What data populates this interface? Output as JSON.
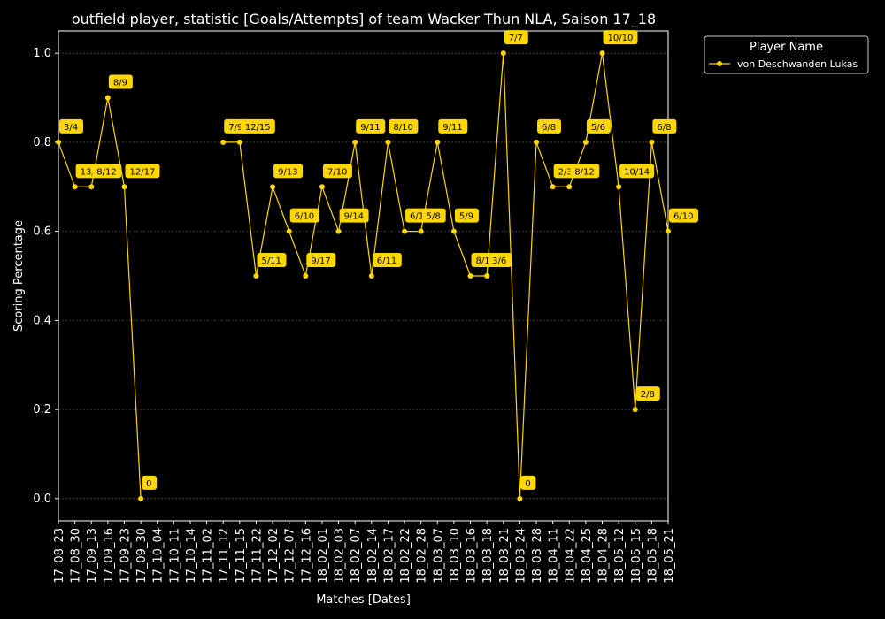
{
  "chart_data": {
    "type": "line",
    "title": "outfield player, statistic [Goals/Attempts] of team Wacker Thun NLA, Saison 17_18",
    "xlabel": "Matches [Dates]",
    "ylabel": "Scoring Percentage",
    "ylim": [
      -0.05,
      1.05
    ],
    "yticks": [
      "0.0",
      "0.2",
      "0.4",
      "0.6",
      "0.8",
      "1.0"
    ],
    "grid": true,
    "legend": {
      "title": "Player Name",
      "position": "outside-top-right"
    },
    "categories": [
      "17_08_23",
      "17_08_30",
      "17_09_13",
      "17_09_16",
      "17_09_23",
      "17_09_30",
      "17_10_04",
      "17_10_11",
      "17_10_14",
      "17_11_02",
      "17_11_12",
      "17_11_15",
      "17_11_22",
      "17_12_02",
      "17_12_07",
      "17_12_16",
      "18_02_01",
      "18_02_03",
      "18_02_07",
      "18_02_14",
      "18_02_17",
      "18_02_22",
      "18_02_28",
      "18_03_07",
      "18_03_10",
      "18_03_16",
      "18_03_18",
      "18_03_21",
      "18_03_24",
      "18_03_28",
      "18_04_11",
      "18_04_22",
      "18_04_25",
      "18_04_28",
      "18_05_12",
      "18_05_15",
      "18_05_18",
      "18_05_21"
    ],
    "series": [
      {
        "name": "von Deschwanden Lukas",
        "color": "#ffd700",
        "values": [
          0.8,
          0.7,
          0.7,
          0.9,
          0.7,
          0.0,
          null,
          null,
          null,
          null,
          0.8,
          0.8,
          0.5,
          0.7,
          0.6,
          0.5,
          0.7,
          0.6,
          0.8,
          0.5,
          0.8,
          0.6,
          0.6,
          0.8,
          0.6,
          0.5,
          0.5,
          1.0,
          0.0,
          0.8,
          0.7,
          0.7,
          0.8,
          1.0,
          0.7,
          0.2,
          0.8,
          0.6
        ],
        "labels": [
          "3/4",
          "13/",
          "8/12",
          "8/9",
          "12/17",
          "0",
          "",
          "",
          "",
          "",
          "7/9",
          "12/15",
          "5/11",
          "9/13",
          "6/10",
          "9/17",
          "7/10",
          "9/14",
          "9/11",
          "6/11",
          "8/10",
          "6/1",
          "5/8",
          "9/11",
          "5/9",
          "8/1",
          "3/6",
          "7/7",
          "0",
          "6/8",
          "2/3",
          "8/12",
          "5/6",
          "10/10",
          "10/14",
          "2/8",
          "6/8",
          "6/10"
        ]
      }
    ]
  }
}
